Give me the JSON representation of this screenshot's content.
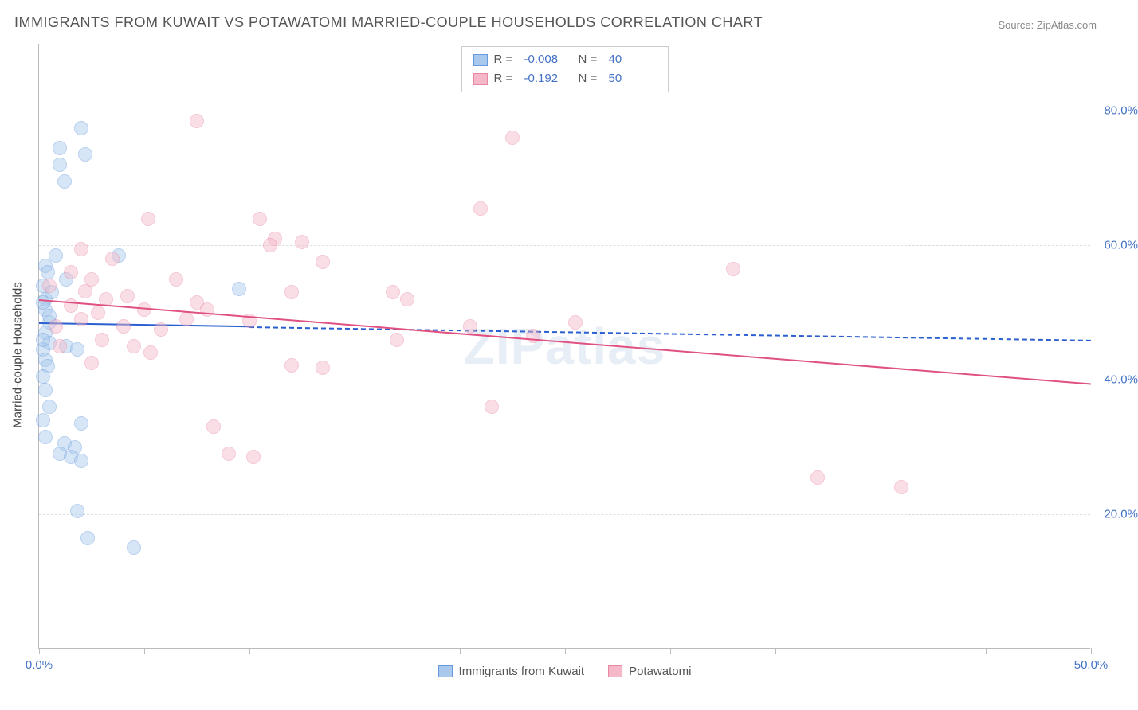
{
  "title": "IMMIGRANTS FROM KUWAIT VS POTAWATOMI MARRIED-COUPLE HOUSEHOLDS CORRELATION CHART",
  "source": "Source: ZipAtlas.com",
  "yaxis_label": "Married-couple Households",
  "watermark": "ZIPatlas",
  "chart": {
    "type": "scatter",
    "background_color": "#ffffff",
    "grid_color": "#dddddd",
    "axis_color": "#bbbbbb",
    "tick_label_color": "#4472c4",
    "xlim": [
      0,
      50
    ],
    "ylim": [
      0,
      90
    ],
    "x_ticks": [
      0,
      5,
      10,
      15,
      20,
      25,
      30,
      35,
      40,
      45,
      50
    ],
    "x_tick_labels": {
      "0": "0.0%",
      "50": "50.0%"
    },
    "y_gridlines": [
      20,
      40,
      60,
      80
    ],
    "y_tick_labels": {
      "20": "20.0%",
      "40": "40.0%",
      "60": "60.0%",
      "80": "80.0%"
    },
    "label_fontsize": 15,
    "title_fontsize": 18,
    "marker_radius": 9,
    "marker_opacity": 0.45,
    "series": [
      {
        "name": "Immigrants from Kuwait",
        "color_fill": "#a8c8ec",
        "color_stroke": "#6699dd",
        "regression": {
          "y_at_x0": 48.5,
          "y_at_xmax": 46.0,
          "solid_until_x": 10,
          "line_color": "#2a5fd0"
        },
        "R_label": "R =",
        "R_value": "-0.008",
        "N_label": "N =",
        "N_value": "40",
        "points": [
          [
            2.0,
            77.5
          ],
          [
            1.0,
            74.5
          ],
          [
            2.2,
            73.5
          ],
          [
            1.0,
            72.0
          ],
          [
            1.2,
            69.5
          ],
          [
            0.8,
            58.5
          ],
          [
            0.3,
            57.0
          ],
          [
            3.8,
            58.5
          ],
          [
            1.3,
            55.0
          ],
          [
            0.2,
            54.0
          ],
          [
            0.3,
            52.0
          ],
          [
            0.3,
            50.5
          ],
          [
            9.5,
            53.5
          ],
          [
            0.5,
            48.5
          ],
          [
            0.3,
            47.0
          ],
          [
            0.5,
            45.5
          ],
          [
            0.2,
            44.5
          ],
          [
            0.3,
            43.0
          ],
          [
            1.3,
            45.0
          ],
          [
            1.8,
            44.5
          ],
          [
            2.0,
            33.5
          ],
          [
            1.2,
            30.5
          ],
          [
            1.7,
            30.0
          ],
          [
            1.0,
            29.0
          ],
          [
            1.5,
            28.5
          ],
          [
            2.0,
            28.0
          ],
          [
            1.8,
            20.5
          ],
          [
            2.3,
            16.5
          ],
          [
            4.5,
            15.0
          ],
          [
            0.4,
            56.0
          ],
          [
            0.6,
            53.0
          ],
          [
            0.2,
            51.5
          ],
          [
            0.5,
            49.5
          ],
          [
            0.2,
            46.0
          ],
          [
            0.4,
            42.0
          ],
          [
            0.2,
            40.5
          ],
          [
            0.3,
            38.5
          ],
          [
            0.5,
            36.0
          ],
          [
            0.2,
            34.0
          ],
          [
            0.3,
            31.5
          ]
        ]
      },
      {
        "name": "Potawatomi",
        "color_fill": "#f4b8c8",
        "color_stroke": "#e886a5",
        "regression": {
          "y_at_x0": 52.0,
          "y_at_xmax": 39.5,
          "solid_until_x": 50,
          "line_color": "#e05080"
        },
        "R_label": "R =",
        "R_value": "-0.192",
        "N_label": "N =",
        "N_value": "50",
        "points": [
          [
            7.5,
            78.5
          ],
          [
            22.5,
            76.0
          ],
          [
            21.0,
            65.5
          ],
          [
            20.5,
            48.0
          ],
          [
            17.0,
            46.0
          ],
          [
            5.2,
            64.0
          ],
          [
            10.5,
            64.0
          ],
          [
            11.2,
            61.0
          ],
          [
            12.5,
            60.5
          ],
          [
            13.5,
            57.5
          ],
          [
            12.0,
            53.0
          ],
          [
            33.0,
            56.5
          ],
          [
            7.5,
            51.5
          ],
          [
            8.0,
            50.5
          ],
          [
            5.0,
            50.5
          ],
          [
            10.0,
            48.8
          ],
          [
            9.0,
            29.0
          ],
          [
            10.2,
            28.5
          ],
          [
            12.0,
            42.2
          ],
          [
            13.5,
            41.8
          ],
          [
            2.2,
            53.2
          ],
          [
            3.2,
            52.0
          ],
          [
            2.8,
            50.0
          ],
          [
            4.0,
            48.0
          ],
          [
            3.0,
            46.0
          ],
          [
            4.5,
            45.0
          ],
          [
            2.5,
            42.5
          ],
          [
            5.3,
            44.0
          ],
          [
            2.0,
            59.5
          ],
          [
            3.5,
            58.0
          ],
          [
            8.3,
            33.0
          ],
          [
            11.0,
            60.0
          ],
          [
            21.5,
            36.0
          ],
          [
            16.8,
            53.0
          ],
          [
            17.5,
            52.0
          ],
          [
            23.5,
            46.5
          ],
          [
            25.5,
            48.5
          ],
          [
            37.0,
            25.5
          ],
          [
            41.0,
            24.0
          ],
          [
            1.5,
            56.0
          ],
          [
            2.5,
            55.0
          ],
          [
            4.2,
            52.5
          ],
          [
            5.8,
            47.5
          ],
          [
            1.0,
            45.0
          ],
          [
            0.8,
            48.0
          ],
          [
            1.5,
            51.0
          ],
          [
            0.5,
            54.0
          ],
          [
            2.0,
            49.0
          ],
          [
            6.5,
            55.0
          ],
          [
            7.0,
            49.0
          ]
        ]
      }
    ]
  }
}
